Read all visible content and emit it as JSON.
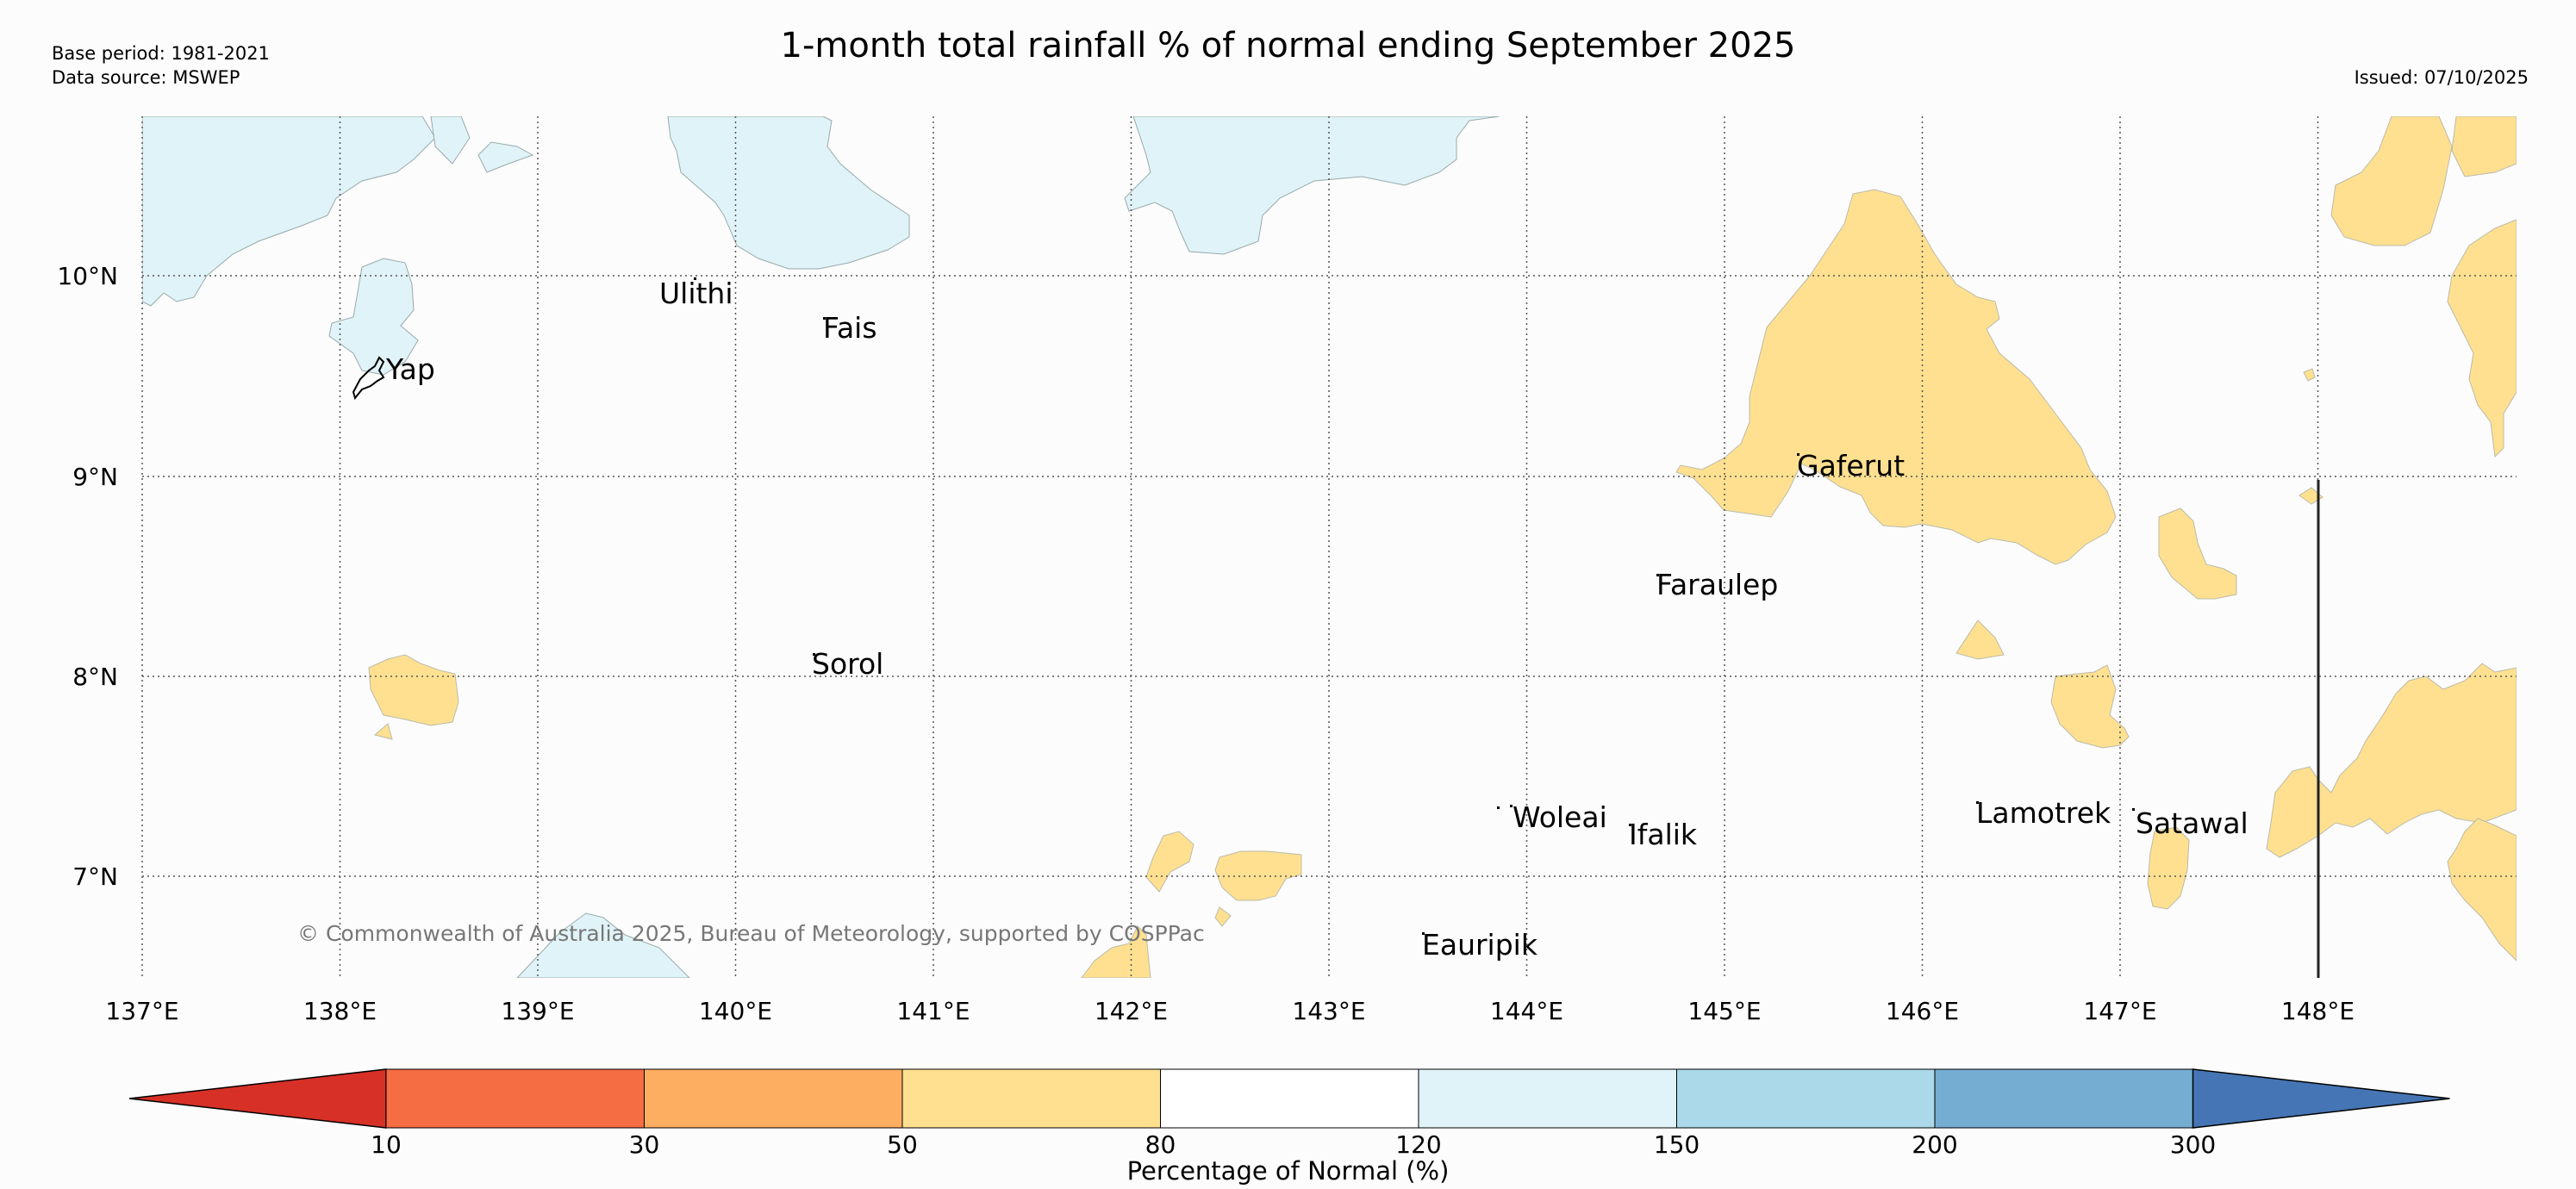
{
  "header": {
    "title": "1-month total rainfall % of normal ending September 2025",
    "base_period": "Base period: 1981-2021",
    "data_source": "Data source: MSWEP",
    "issued": "Issued: 07/10/2025"
  },
  "map": {
    "lat_labels": [
      "10°N",
      "9°N",
      "8°N",
      "7°N"
    ],
    "lon_labels": [
      "137°E",
      "138°E",
      "139°E",
      "140°E",
      "141°E",
      "142°E",
      "143°E",
      "144°E",
      "145°E",
      "146°E",
      "147°E",
      "148°E"
    ],
    "places": [
      "Yap",
      "Ulithi",
      "Fais",
      "Sorol",
      "Gaferut",
      "Faraulep",
      "Woleai",
      "Ifalik",
      "Lamotrek",
      "Satawal",
      "Eauripik"
    ],
    "copyright": "© Commonwealth of Australia 2025, Bureau of Meteorology, supported by COSPPac"
  },
  "colorbar": {
    "label": "Percentage of Normal (%)",
    "ticks": [
      "10",
      "30",
      "50",
      "80",
      "120",
      "150",
      "200",
      "300"
    ],
    "colors": [
      "#d73027",
      "#f46d43",
      "#fdae61",
      "#fee090",
      "#ffffff",
      "#e0f3f8",
      "#abd9e9",
      "#74add1",
      "#4575b4"
    ]
  },
  "styles": {
    "dry": "#fee090",
    "wet": "#e0f3f8"
  }
}
